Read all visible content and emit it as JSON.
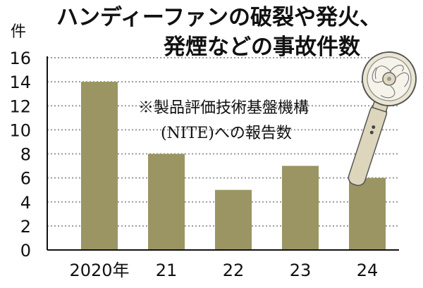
{
  "title": {
    "line1": "ハンディーファンの破裂や発火、",
    "line2": "発煙などの事故件数"
  },
  "source_note": {
    "line1": "※製品評価技術基盤機構",
    "line2": "(NITE)への報告数"
  },
  "illustration": {
    "icon": "handheld-fan-icon"
  },
  "colors": {
    "bar": "#9a9563",
    "grid": "#9a9a9a",
    "text": "#111111",
    "axis": "#111111"
  },
  "chart_data": {
    "type": "bar",
    "categories": [
      "2020年",
      "21",
      "22",
      "23",
      "24"
    ],
    "values": [
      14,
      8,
      5,
      7,
      6
    ],
    "ylabel": "件",
    "ylim": [
      0,
      16
    ],
    "yticks": [
      "0",
      "2",
      "4",
      "6",
      "8",
      "10",
      "12",
      "14",
      "16"
    ],
    "grid": true,
    "grid_style": "dotted"
  }
}
